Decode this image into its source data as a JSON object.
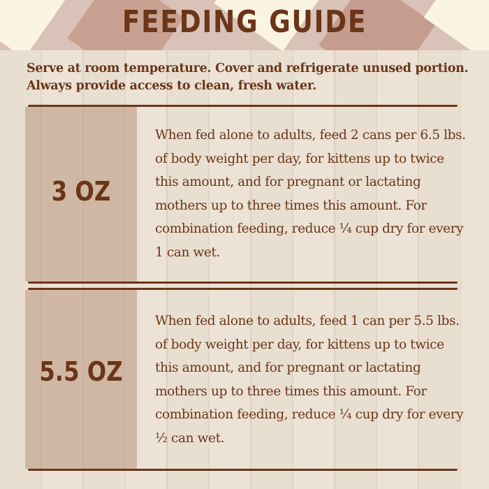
{
  "title": "FEEDING GUIDE",
  "intro": "Serve at room temperature. Cover and refrigerate unused portion. Always provide access to clean, fresh water.",
  "sections": [
    {
      "size": "3 OZ",
      "text": "When fed alone to adults, feed 2 cans per 6.5 lbs. of body weight per day, for kittens up to twice this amount, and for pregnant or lactating mothers up to three times this amount. For combination feeding, reduce ¼ cup dry for every 1 can wet."
    },
    {
      "size": "5.5 OZ",
      "text": "When fed alone to adults, feed 1 can per 5.5 lbs. of body weight per day, for kittens up to twice this amount, and for pregnant or lactating mothers up to three times this amount. For combination feeding, reduce ¼ cup dry for every ½ can wet."
    }
  ],
  "colors": {
    "text": "#6a3519",
    "panel": "#c9b09c",
    "gingham": "#c59c8e"
  }
}
